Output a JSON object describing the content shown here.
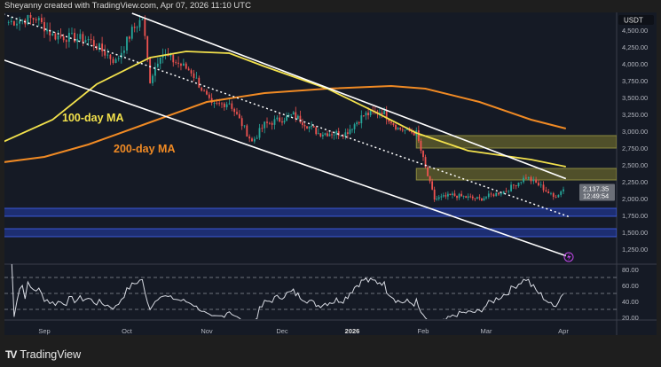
{
  "header": {
    "credit": "Sheyanny created with TradingView.com, Apr 07, 2026 11:10 UTC"
  },
  "footer": {
    "brand": "TradingView"
  },
  "colors": {
    "background": "#151a25",
    "up": "#26a69a",
    "down": "#ef5350",
    "ma100": "#f2e14c",
    "ma200": "#f08a24",
    "supply_zone": "#5b5a2c",
    "demand_zone": "#1f3380",
    "rsi": "#d8dbe3",
    "channel": "#ffffff"
  },
  "chart_data": [
    {
      "type": "candlestick",
      "quote_unit": "USDT",
      "x_ticks": [
        "Sep",
        "Oct",
        "Nov",
        "Dec",
        "2026",
        "Feb",
        "Mar",
        "Apr"
      ],
      "y_ticks": [
        "4,500.00",
        "4,250.00",
        "4,000.00",
        "3,750.00",
        "3,500.00",
        "3,250.00",
        "3,000.00",
        "2,750.00",
        "2,500.00",
        "2,250.00",
        "2,000.00",
        "1,750.00",
        "1,500.00",
        "1,250.00"
      ],
      "ylim": [
        1150,
        4750
      ],
      "last_price": "2,137.35",
      "countdown": "12:49:54",
      "price_path": [
        [
          "2025-08-19",
          4620
        ],
        [
          "2025-08-29",
          4680
        ],
        [
          "2025-09-04",
          4420
        ],
        [
          "2025-09-17",
          4360
        ],
        [
          "2025-09-27",
          4030
        ],
        [
          "2025-10-03",
          4490
        ],
        [
          "2025-10-07",
          4680
        ],
        [
          "2025-10-10",
          3760
        ],
        [
          "2025-10-14",
          4160
        ],
        [
          "2025-10-26",
          3890
        ],
        [
          "2025-11-03",
          3370
        ],
        [
          "2025-11-10",
          3430
        ],
        [
          "2025-11-19",
          2840
        ],
        [
          "2025-11-24",
          3100
        ],
        [
          "2025-12-06",
          3240
        ],
        [
          "2025-12-17",
          2970
        ],
        [
          "2025-12-29",
          2970
        ],
        [
          "2026-01-06",
          3240
        ],
        [
          "2026-01-14",
          3300
        ],
        [
          "2026-01-21",
          3040
        ],
        [
          "2026-01-29",
          2970
        ],
        [
          "2026-02-02",
          2450
        ],
        [
          "2026-02-06",
          1990
        ],
        [
          "2026-02-14",
          2050
        ],
        [
          "2026-02-26",
          1990
        ],
        [
          "2026-03-09",
          2120
        ],
        [
          "2026-03-17",
          2320
        ],
        [
          "2026-03-23",
          2180
        ],
        [
          "2026-03-28",
          2020
        ],
        [
          "2026-04-01",
          2137
        ]
      ],
      "ma100": {
        "label": "100-day MA",
        "points": [
          [
            "2025-08-17",
            2842
          ],
          [
            "2025-09-04",
            3171
          ],
          [
            "2025-09-20",
            3697
          ],
          [
            "2025-10-10",
            4092
          ],
          [
            "2025-10-24",
            4184
          ],
          [
            "2025-11-10",
            4158
          ],
          [
            "2025-11-24",
            3960
          ],
          [
            "2025-12-21",
            3631
          ],
          [
            "2026-01-10",
            3303
          ],
          [
            "2026-01-29",
            2974
          ],
          [
            "2026-02-21",
            2710
          ],
          [
            "2026-03-19",
            2579
          ],
          [
            "2026-04-02",
            2473
          ]
        ]
      },
      "ma200": {
        "label": "200-day MA",
        "points": [
          [
            "2025-08-17",
            2539
          ],
          [
            "2025-09-01",
            2618
          ],
          [
            "2025-09-17",
            2802
          ],
          [
            "2025-10-10",
            3131
          ],
          [
            "2025-11-01",
            3434
          ],
          [
            "2025-11-24",
            3566
          ],
          [
            "2025-12-21",
            3631
          ],
          [
            "2026-01-18",
            3671
          ],
          [
            "2026-02-02",
            3631
          ],
          [
            "2026-02-26",
            3434
          ],
          [
            "2026-03-19",
            3171
          ],
          [
            "2026-04-02",
            3039
          ]
        ]
      },
      "channel": {
        "upper": [
          [
            "2025-10-03",
            4750
          ],
          [
            "2026-04-02",
            2295
          ]
        ],
        "middle": [
          [
            "2025-08-17",
            4740
          ],
          [
            "2026-04-04",
            1720
          ]
        ],
        "lower": [
          [
            "2025-08-17",
            4060
          ],
          [
            "2026-04-02",
            1150
          ]
        ]
      },
      "zones": [
        {
          "kind": "supply",
          "from": "2026-01-29",
          "top": 2934,
          "bottom": 2750
        },
        {
          "kind": "supply",
          "from": "2026-01-29",
          "top": 2447,
          "bottom": 2276
        },
        {
          "kind": "demand",
          "from": "2025-08-17",
          "top": 1855,
          "bottom": 1737
        },
        {
          "kind": "demand",
          "from": "2025-08-17",
          "top": 1552,
          "bottom": 1434
        }
      ]
    },
    {
      "type": "line",
      "indicator": "RSI",
      "y_ticks": [
        "80.00",
        "60.00",
        "40.00",
        "20.00"
      ],
      "ylim": [
        14,
        86
      ],
      "bands": [
        70,
        50,
        30
      ]
    }
  ]
}
